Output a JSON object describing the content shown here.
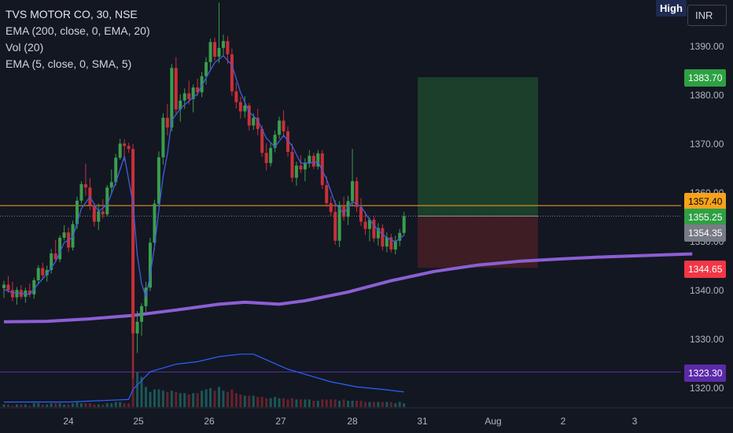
{
  "header": {
    "high_label": "High",
    "currency": "INR"
  },
  "legend": {
    "symbol": "TVS MOTOR CO, 30, NSE",
    "indicators": [
      "EMA (200, close, 0, EMA, 20)",
      "Vol (20)",
      "EMA (5, close, 0, SMA, 5)"
    ]
  },
  "colors": {
    "background": "#131722",
    "up": "#26a69a",
    "up_candle": "#3a9d4e",
    "down": "#c9303a",
    "ema200": "#8c5fd4",
    "ema5": "#3f5fe0",
    "volume_ma": "#2962ff",
    "grid_text": "#b2b5be",
    "price_line": "#f7a21b",
    "target_zone": "#1e4a2e",
    "stop_zone": "#4a1f25"
  },
  "chart_data": {
    "type": "candlestick",
    "x_ticks": [
      "24",
      "25",
      "26",
      "27",
      "28",
      "31",
      "Aug",
      "2",
      "3"
    ],
    "y_ticks": [
      1320,
      1330,
      1340,
      1350,
      1360,
      1370,
      1380,
      1390
    ],
    "ylim": [
      1317,
      1399
    ],
    "price_labels": [
      {
        "value": "1383.70",
        "price": 1383.7,
        "color": "#2ea043"
      },
      {
        "value": "1357.40",
        "price": 1357.4,
        "color": "#f7a21b"
      },
      {
        "value": "1355.25",
        "price": 1355.25,
        "color": "#2ea043"
      },
      {
        "value": "1354.35",
        "price": 1354.35,
        "color": "#787b86"
      },
      {
        "value": "1344.65",
        "price": 1344.65,
        "color": "#f23645"
      },
      {
        "value": "1323.30",
        "price": 1323.3,
        "color": "#5b2aa8"
      }
    ],
    "position": {
      "entry": 1355.25,
      "target": 1383.7,
      "stop": 1344.65
    },
    "horizontal_lines": [
      {
        "price": 1357.4,
        "color": "#f7a21b"
      },
      {
        "price": 1323.3,
        "color": "#5b2aa8"
      }
    ],
    "candles": [
      [
        1340.5,
        1342,
        1338.5,
        1341.2
      ],
      [
        1341.2,
        1343,
        1339.5,
        1340.1
      ],
      [
        1340.1,
        1341.8,
        1337.8,
        1338.6
      ],
      [
        1338.6,
        1340.7,
        1337.1,
        1340.1
      ],
      [
        1340.1,
        1341.1,
        1338.2,
        1338.7
      ],
      [
        1338.7,
        1340.6,
        1337.5,
        1340
      ],
      [
        1340,
        1341.4,
        1338.6,
        1339.2
      ],
      [
        1339.2,
        1342.6,
        1338.3,
        1342.1
      ],
      [
        1342.1,
        1345.2,
        1341.4,
        1344.6
      ],
      [
        1344.6,
        1345.7,
        1342.2,
        1343.1
      ],
      [
        1343.1,
        1345.1,
        1341.8,
        1344.2
      ],
      [
        1344.2,
        1348.5,
        1343.5,
        1347.6
      ],
      [
        1347.6,
        1350.4,
        1345.8,
        1346.4
      ],
      [
        1346.4,
        1351.3,
        1345.8,
        1350.8
      ],
      [
        1350.8,
        1353.4,
        1350.2,
        1351.9
      ],
      [
        1351.9,
        1352.9,
        1347.9,
        1348.8
      ],
      [
        1348.8,
        1354.3,
        1348.2,
        1353.6
      ],
      [
        1353.6,
        1359.2,
        1352.6,
        1358.4
      ],
      [
        1358.4,
        1362.4,
        1357.8,
        1361.8
      ],
      [
        1361.8,
        1366,
        1359.4,
        1361.1
      ],
      [
        1361.1,
        1363,
        1356.5,
        1357.5
      ],
      [
        1357.5,
        1357.9,
        1353.1,
        1354.1
      ],
      [
        1354.1,
        1357.8,
        1352.4,
        1356.2
      ],
      [
        1356.2,
        1358.7,
        1354.8,
        1355.6
      ],
      [
        1355.6,
        1361.6,
        1355.2,
        1361.1
      ],
      [
        1361.1,
        1364.8,
        1359.6,
        1362.2
      ],
      [
        1362.2,
        1368,
        1361.5,
        1367.2
      ],
      [
        1367.2,
        1371.1,
        1366.8,
        1370.1
      ],
      [
        1370.1,
        1371,
        1366.5,
        1369.6
      ],
      [
        1369.6,
        1370.3,
        1368.2,
        1369
      ],
      [
        1369,
        1370,
        1322,
        1331.2
      ],
      [
        1331.2,
        1335.8,
        1327.2,
        1333.6
      ],
      [
        1333.6,
        1337.4,
        1330.7,
        1336.8
      ],
      [
        1336.8,
        1341.8,
        1335.6,
        1340.6
      ],
      [
        1340.6,
        1350.8,
        1339.9,
        1349.8
      ],
      [
        1349.8,
        1358.6,
        1348.4,
        1357.8
      ],
      [
        1357.8,
        1368.5,
        1357.2,
        1367.3
      ],
      [
        1367.3,
        1376.3,
        1365.8,
        1375.4
      ],
      [
        1375.4,
        1378.2,
        1371.8,
        1373.4
      ],
      [
        1373.4,
        1386.4,
        1372.6,
        1385.6
      ],
      [
        1385.6,
        1387.8,
        1376.1,
        1377.1
      ],
      [
        1377.1,
        1380.2,
        1374.6,
        1378.9
      ],
      [
        1378.9,
        1381.4,
        1377.2,
        1380.4
      ],
      [
        1380.4,
        1383,
        1378.1,
        1379.2
      ],
      [
        1379.2,
        1382.2,
        1376.5,
        1381.6
      ],
      [
        1381.6,
        1383.4,
        1379.8,
        1380.6
      ],
      [
        1380.6,
        1384.8,
        1379.6,
        1383.9
      ],
      [
        1383.9,
        1387.8,
        1382.2,
        1386.8
      ],
      [
        1386.8,
        1391.6,
        1385.4,
        1390.9
      ],
      [
        1390.9,
        1391.8,
        1387.1,
        1387.9
      ],
      [
        1387.9,
        1399,
        1386.6,
        1389.7
      ],
      [
        1389.7,
        1392.4,
        1388.1,
        1391.1
      ],
      [
        1391.1,
        1392.1,
        1386.4,
        1388.4
      ],
      [
        1388.4,
        1389.6,
        1379.9,
        1380.8
      ],
      [
        1380.8,
        1382.6,
        1377.3,
        1378.6
      ],
      [
        1378.6,
        1379.7,
        1375.2,
        1376.7
      ],
      [
        1376.7,
        1379.8,
        1375.4,
        1377.9
      ],
      [
        1377.9,
        1378.4,
        1372.8,
        1373.8
      ],
      [
        1373.8,
        1376.3,
        1372.9,
        1375.4
      ],
      [
        1375.4,
        1377.2,
        1371.8,
        1373.1
      ],
      [
        1373.1,
        1373.8,
        1367.4,
        1368.2
      ],
      [
        1368.2,
        1370.2,
        1364.6,
        1366.1
      ],
      [
        1366.1,
        1370.3,
        1365.4,
        1369.2
      ],
      [
        1369.2,
        1372.8,
        1368.3,
        1371.9
      ],
      [
        1371.9,
        1375.6,
        1371.1,
        1374.8
      ],
      [
        1374.8,
        1376.9,
        1371.4,
        1372.6
      ],
      [
        1372.6,
        1373.6,
        1367.4,
        1368.4
      ],
      [
        1368.4,
        1370.1,
        1362.2,
        1363.1
      ],
      [
        1363.1,
        1366.4,
        1361.5,
        1365.6
      ],
      [
        1365.6,
        1367.7,
        1364.1,
        1364.8
      ],
      [
        1364.8,
        1367.1,
        1362.4,
        1366.1
      ],
      [
        1366.1,
        1368.8,
        1365.2,
        1367.6
      ],
      [
        1367.6,
        1368.2,
        1364.9,
        1365.4
      ],
      [
        1365.4,
        1368.8,
        1364.8,
        1368.1
      ],
      [
        1368.1,
        1368.8,
        1360.8,
        1361.6
      ],
      [
        1361.6,
        1363.4,
        1357.1,
        1357.9
      ],
      [
        1357.9,
        1359.3,
        1355.3,
        1356.1
      ],
      [
        1356.1,
        1358.5,
        1349.4,
        1350.2
      ],
      [
        1350.2,
        1358.3,
        1348.9,
        1357.4
      ],
      [
        1357.4,
        1359.2,
        1354.3,
        1355.1
      ],
      [
        1355.1,
        1359.4,
        1353.4,
        1358.3
      ],
      [
        1358.3,
        1369,
        1357.2,
        1362.4
      ],
      [
        1362.4,
        1363.2,
        1356.1,
        1357.1
      ],
      [
        1357.1,
        1358.9,
        1353.2,
        1354.1
      ],
      [
        1354.1,
        1356.2,
        1351.4,
        1352.6
      ],
      [
        1352.6,
        1355,
        1350.1,
        1354.5
      ],
      [
        1354.5,
        1355.2,
        1349.9,
        1350.7
      ],
      [
        1350.7,
        1353.8,
        1349.2,
        1352.8
      ],
      [
        1352.8,
        1353.6,
        1348.2,
        1349
      ],
      [
        1349,
        1351.9,
        1347.8,
        1350.9
      ],
      [
        1350.9,
        1351.6,
        1347.8,
        1348.4
      ],
      [
        1348.4,
        1351.2,
        1347.4,
        1350.2
      ],
      [
        1350.2,
        1352.6,
        1349.1,
        1351.8
      ],
      [
        1351.8,
        1356.1,
        1351.2,
        1355.25
      ]
    ],
    "ema200": [
      [
        0,
        1333.6
      ],
      [
        10,
        1333.7
      ],
      [
        20,
        1334.2
      ],
      [
        30,
        1334.9
      ],
      [
        40,
        1336
      ],
      [
        50,
        1337.2
      ],
      [
        56,
        1337.6
      ],
      [
        60,
        1337.4
      ],
      [
        64,
        1337.2
      ],
      [
        70,
        1337.9
      ],
      [
        80,
        1339.7
      ],
      [
        90,
        1342
      ],
      [
        100,
        1343.9
      ],
      [
        110,
        1345.2
      ],
      [
        120,
        1346
      ],
      [
        130,
        1346.5
      ],
      [
        140,
        1346.9
      ],
      [
        150,
        1347.2
      ],
      [
        160,
        1347.5
      ]
    ],
    "ema5": [
      [
        0,
        1340.2
      ],
      [
        2,
        1339.6
      ],
      [
        4,
        1339.4
      ],
      [
        6,
        1339.2
      ],
      [
        8,
        1341.4
      ],
      [
        10,
        1343.4
      ],
      [
        12,
        1345.9
      ],
      [
        14,
        1349.8
      ],
      [
        16,
        1350.9
      ],
      [
        18,
        1356.8
      ],
      [
        20,
        1359.2
      ],
      [
        22,
        1356.2
      ],
      [
        24,
        1357.6
      ],
      [
        26,
        1362.1
      ],
      [
        28,
        1367.5
      ],
      [
        30,
        1357.8
      ],
      [
        31,
        1347.2
      ],
      [
        32,
        1341.4
      ],
      [
        33,
        1338.7
      ],
      [
        34,
        1343.2
      ],
      [
        35,
        1348.9
      ],
      [
        36,
        1356.4
      ],
      [
        37,
        1363.4
      ],
      [
        38,
        1368
      ],
      [
        39,
        1374.8
      ],
      [
        41,
        1377.3
      ],
      [
        43,
        1378.8
      ],
      [
        45,
        1380.3
      ],
      [
        47,
        1383.6
      ],
      [
        49,
        1386.7
      ],
      [
        51,
        1388.1
      ],
      [
        53,
        1386.2
      ],
      [
        55,
        1380.6
      ],
      [
        57,
        1376.6
      ],
      [
        59,
        1374.9
      ],
      [
        61,
        1371.2
      ],
      [
        63,
        1369.4
      ],
      [
        65,
        1371.8
      ],
      [
        67,
        1369.6
      ],
      [
        69,
        1366.1
      ],
      [
        71,
        1366.1
      ],
      [
        73,
        1366.4
      ],
      [
        75,
        1362.8
      ],
      [
        77,
        1357.8
      ],
      [
        79,
        1355.8
      ],
      [
        81,
        1358.2
      ],
      [
        83,
        1357.2
      ],
      [
        85,
        1354.5
      ],
      [
        87,
        1352.3
      ],
      [
        89,
        1350.8
      ],
      [
        91,
        1350
      ],
      [
        93,
        1351.3
      ]
    ],
    "volume": [
      2,
      2,
      1,
      2,
      2,
      2,
      1,
      3,
      3,
      2,
      2,
      3,
      3,
      3,
      2,
      2,
      3,
      4,
      3,
      3,
      3,
      2,
      2,
      2,
      3,
      3,
      4,
      4,
      3,
      3,
      100,
      28,
      24,
      16,
      12,
      14,
      14,
      13,
      12,
      13,
      12,
      11,
      11,
      10,
      11,
      11,
      13,
      14,
      15,
      13,
      16,
      13,
      12,
      14,
      11,
      10,
      9,
      9,
      9,
      8,
      8,
      7,
      7,
      8,
      7,
      7,
      6,
      7,
      6,
      6,
      6,
      6,
      5,
      5,
      6,
      6,
      6,
      6,
      5,
      6,
      5,
      5,
      5,
      5,
      4,
      4,
      4,
      4,
      4,
      4,
      4,
      3,
      4,
      3
    ],
    "volume_ma": [
      [
        0,
        2
      ],
      [
        15,
        2
      ],
      [
        29,
        3
      ],
      [
        30,
        7
      ],
      [
        34,
        14
      ],
      [
        40,
        17
      ],
      [
        45,
        18
      ],
      [
        50,
        20
      ],
      [
        55,
        21
      ],
      [
        58,
        21
      ],
      [
        62,
        18
      ],
      [
        66,
        15
      ],
      [
        70,
        13
      ],
      [
        76,
        10
      ],
      [
        82,
        8
      ],
      [
        88,
        7
      ],
      [
        93,
        6
      ]
    ]
  }
}
